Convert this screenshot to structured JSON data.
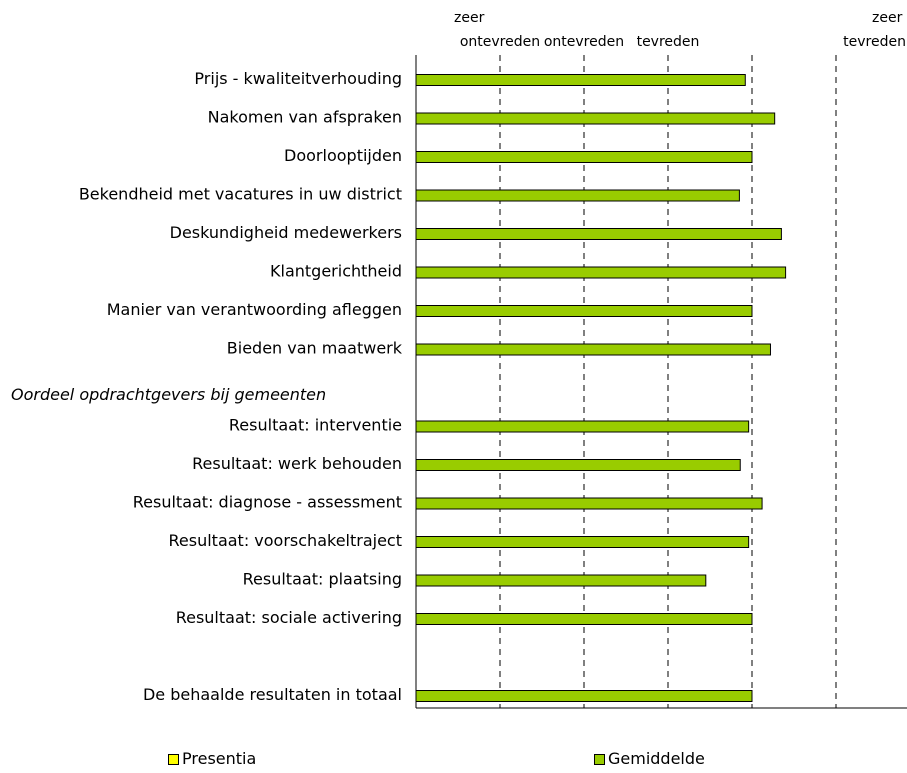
{
  "chart_data": {
    "type": "bar",
    "orientation": "horizontal",
    "scale_labels": [
      {
        "value": 1,
        "lines": [
          "zeer",
          "ontevreden"
        ]
      },
      {
        "value": 2,
        "lines": [
          "ontevreden"
        ]
      },
      {
        "value": 3,
        "lines": [
          "tevreden"
        ]
      },
      {
        "value": 4,
        "lines": [
          "zeer",
          "tevreden"
        ]
      }
    ],
    "xlim": [
      0,
      6
    ],
    "grid": "vertical dashed at 1, 2, 3, 4, 5",
    "rows": [
      {
        "kind": "bar",
        "label": "Prijs - kwaliteitverhouding",
        "value": 3.92
      },
      {
        "kind": "bar",
        "label": "Nakomen van afspraken",
        "value": 4.27
      },
      {
        "kind": "bar",
        "label": "Doorlooptijden",
        "value": 4.0
      },
      {
        "kind": "bar",
        "label": "Bekendheid met vacatures in uw district",
        "value": 3.85
      },
      {
        "kind": "bar",
        "label": "Deskundigheid medewerkers",
        "value": 4.35
      },
      {
        "kind": "bar",
        "label": "Klantgerichtheid",
        "value": 4.4
      },
      {
        "kind": "bar",
        "label": "Manier van verantwoording afleggen",
        "value": 4.0
      },
      {
        "kind": "bar",
        "label": "Bieden van maatwerk",
        "value": 4.22
      },
      {
        "kind": "section",
        "label": "Oordeel opdrachtgevers bij gemeenten"
      },
      {
        "kind": "bar",
        "label": "Resultaat: interventie",
        "value": 3.96
      },
      {
        "kind": "bar",
        "label": "Resultaat: werk behouden",
        "value": 3.86
      },
      {
        "kind": "bar",
        "label": "Resultaat: diagnose - assessment",
        "value": 4.12
      },
      {
        "kind": "bar",
        "label": "Resultaat: voorschakeltraject",
        "value": 3.96
      },
      {
        "kind": "bar",
        "label": "Resultaat: plaatsing",
        "value": 3.45
      },
      {
        "kind": "bar",
        "label": "Resultaat: sociale activering",
        "value": 4.0
      },
      {
        "kind": "gap"
      },
      {
        "kind": "bar",
        "label": "De behaalde resultaten in totaal",
        "value": 4.0
      }
    ],
    "series": [
      {
        "name": "Presentia",
        "color": "#ffff00",
        "values": []
      },
      {
        "name": "Gemiddelde",
        "color": "#99cc00",
        "values": [
          3.92,
          4.27,
          4.0,
          3.85,
          4.35,
          4.4,
          4.0,
          4.22,
          3.96,
          3.86,
          4.12,
          3.96,
          3.45,
          4.0,
          4.0
        ]
      }
    ],
    "legend_position": "bottom"
  },
  "legend": {
    "presentia": {
      "label": "Presentia",
      "color": "#ffff00"
    },
    "gemiddelde": {
      "label": "Gemiddelde",
      "color": "#99cc00"
    }
  }
}
